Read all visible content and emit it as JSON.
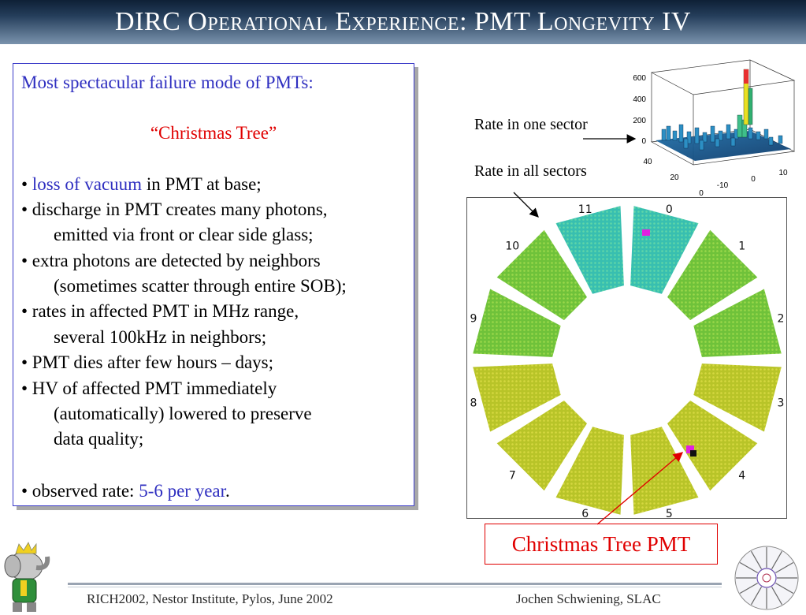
{
  "title": "DIRC Operational Experience: PMT Longevity IV",
  "textbox": {
    "intro": "Most spectacular failure mode of PMTs:",
    "heading": "“Christmas Tree”",
    "lines": [
      {
        "bullet": "•",
        "highlight": "loss of vacuum",
        "rest": " in PMT at base;"
      },
      {
        "text": "• discharge in PMT creates many photons,"
      },
      {
        "text": "emitted via front or clear side glass;"
      },
      {
        "text": "• extra photons are detected by neighbors"
      },
      {
        "text": "(sometimes scatter through entire SOB);"
      },
      {
        "text": "• rates in affected PMT in MHz range,"
      },
      {
        "text": "several 100kHz in neighbors;"
      },
      {
        "text": "• PMT dies after few hours – days;"
      },
      {
        "text": "• HV of affected PMT immediately"
      },
      {
        "text": "(automatically) lowered to preserve"
      },
      {
        "text": "data quality;"
      }
    ],
    "observed_prefix": "• observed rate: ",
    "observed_value": "5-6 per year",
    "observed_suffix": "."
  },
  "labels": {
    "rate_one": "Rate in one sector",
    "rate_all": "Rate in all sectors",
    "christmas_tree_pmt": "Christmas Tree PMT"
  },
  "plot3d": {
    "z_ticks": [
      "600",
      "400",
      "200",
      "0"
    ],
    "y_ticks": [
      "40",
      "20",
      "0"
    ],
    "x_ticks": [
      "-10",
      "0",
      "10"
    ]
  },
  "sectors": [
    "0",
    "1",
    "2",
    "3",
    "4",
    "5",
    "6",
    "7",
    "8",
    "9",
    "10",
    "11"
  ],
  "footer": {
    "left": "RICH2002, Nestor Institute, Pylos, June 2002",
    "right": "Jochen Schwiening, SLAC"
  },
  "colors": {
    "title_bg": "#243d5a",
    "accent_blue": "#2f2fc0",
    "accent_red": "#e00000"
  }
}
